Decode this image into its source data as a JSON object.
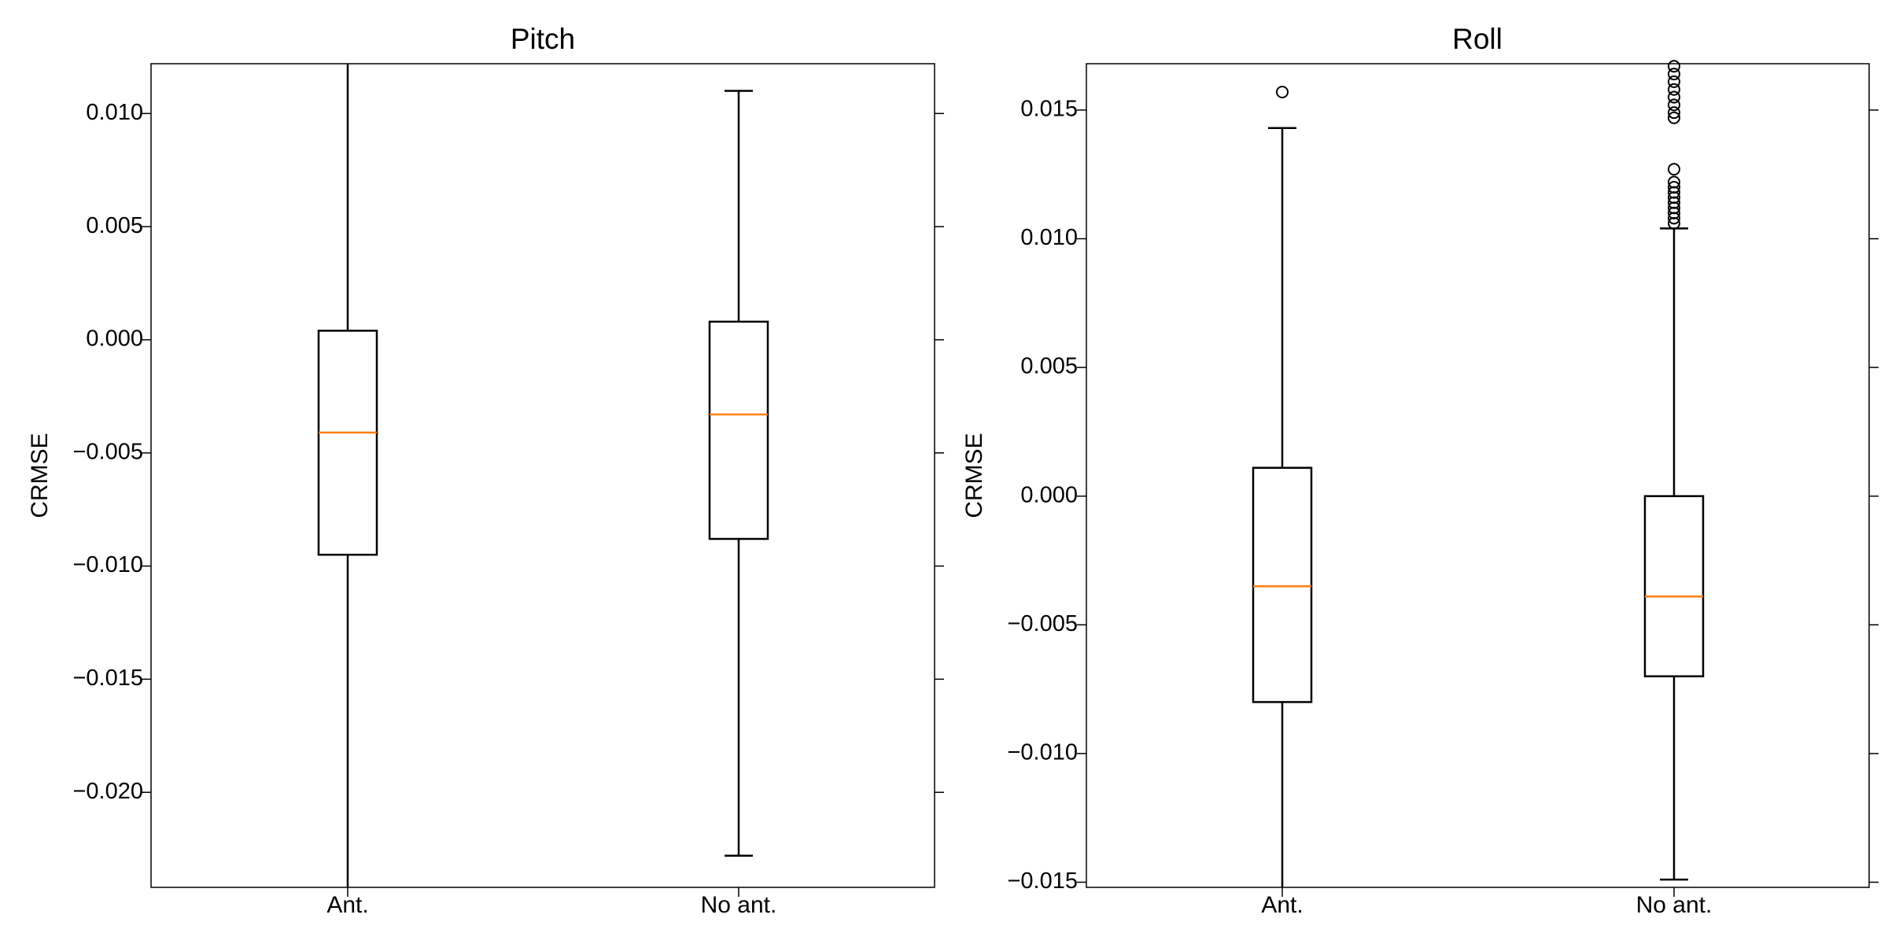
{
  "colors": {
    "box": "#000000",
    "median": "#ff7f0e",
    "background": "#ffffff"
  },
  "chart_data": [
    {
      "type": "box",
      "title": "Pitch",
      "xlabel": "",
      "ylabel": "CRMSE",
      "ylim": [
        -0.0242,
        0.0122
      ],
      "yticks": [
        0.01,
        0.005,
        0.0,
        -0.005,
        -0.01,
        -0.015,
        -0.02
      ],
      "ytick_labels": [
        "0.010",
        "0.005",
        "0.000",
        "−0.005",
        "−0.010",
        "−0.015",
        "−0.020"
      ],
      "categories": [
        "Ant.",
        "No ant."
      ],
      "boxes": [
        {
          "whisker_low": -0.0242,
          "q1": -0.0095,
          "median": -0.0041,
          "q3": 0.0004,
          "whisker_high": 0.0122,
          "outliers": []
        },
        {
          "whisker_low": -0.0228,
          "q1": -0.0088,
          "median": -0.0033,
          "q3": 0.0008,
          "whisker_high": 0.011,
          "outliers": []
        }
      ],
      "grid": false
    },
    {
      "type": "box",
      "title": "Roll",
      "xlabel": "",
      "ylabel": "CRMSE",
      "ylim": [
        -0.0152,
        0.0168
      ],
      "yticks": [
        0.015,
        0.01,
        0.005,
        0.0,
        -0.005,
        -0.01,
        -0.015
      ],
      "ytick_labels": [
        "0.015",
        "0.010",
        "0.005",
        "0.000",
        "−0.005",
        "−0.010",
        "−0.015"
      ],
      "categories": [
        "Ant.",
        "No ant."
      ],
      "boxes": [
        {
          "whisker_low": -0.0152,
          "q1": -0.008,
          "median": -0.0035,
          "q3": 0.0011,
          "whisker_high": 0.0143,
          "outliers": [
            0.0157
          ]
        },
        {
          "whisker_low": -0.0149,
          "q1": -0.007,
          "median": -0.0039,
          "q3": 0.0,
          "whisker_high": 0.0104,
          "outliers": [
            0.0106,
            0.0108,
            0.011,
            0.0112,
            0.0114,
            0.0116,
            0.0118,
            0.012,
            0.0122,
            0.0127,
            0.0147,
            0.0149,
            0.0152,
            0.0155,
            0.0158,
            0.0161,
            0.0164,
            0.0167
          ]
        }
      ],
      "grid": false
    }
  ]
}
